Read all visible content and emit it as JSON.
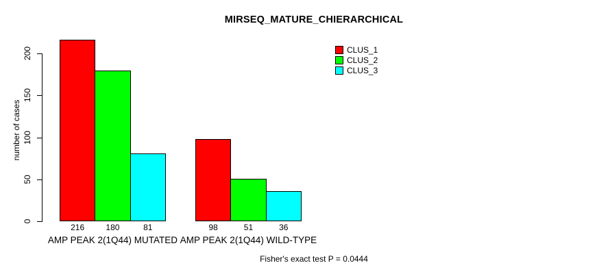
{
  "chart_data": {
    "type": "bar",
    "title": "MIRSEQ_MATURE_CHIERARCHICAL",
    "xlabel": "",
    "ylabel": "number of cases",
    "ylim": [
      0,
      200
    ],
    "yticks": [
      0,
      50,
      100,
      150,
      200
    ],
    "grid": false,
    "legend_position": "top-right",
    "categories": [
      "AMP PEAK 2(1Q44) MUTATED",
      "AMP PEAK 2(1Q44) WILD-TYPE"
    ],
    "series": [
      {
        "name": "CLUS_1",
        "color": "#ff0000",
        "values": [
          216,
          98
        ]
      },
      {
        "name": "CLUS_2",
        "color": "#00ff00",
        "values": [
          180,
          51
        ]
      },
      {
        "name": "CLUS_3",
        "color": "#00ffff",
        "values": [
          81,
          36
        ]
      }
    ],
    "bar_value_labels": [
      [
        216,
        180,
        81
      ],
      [
        98,
        51,
        36
      ]
    ],
    "annotation": "Fisher's exact test P = 0.0444"
  }
}
